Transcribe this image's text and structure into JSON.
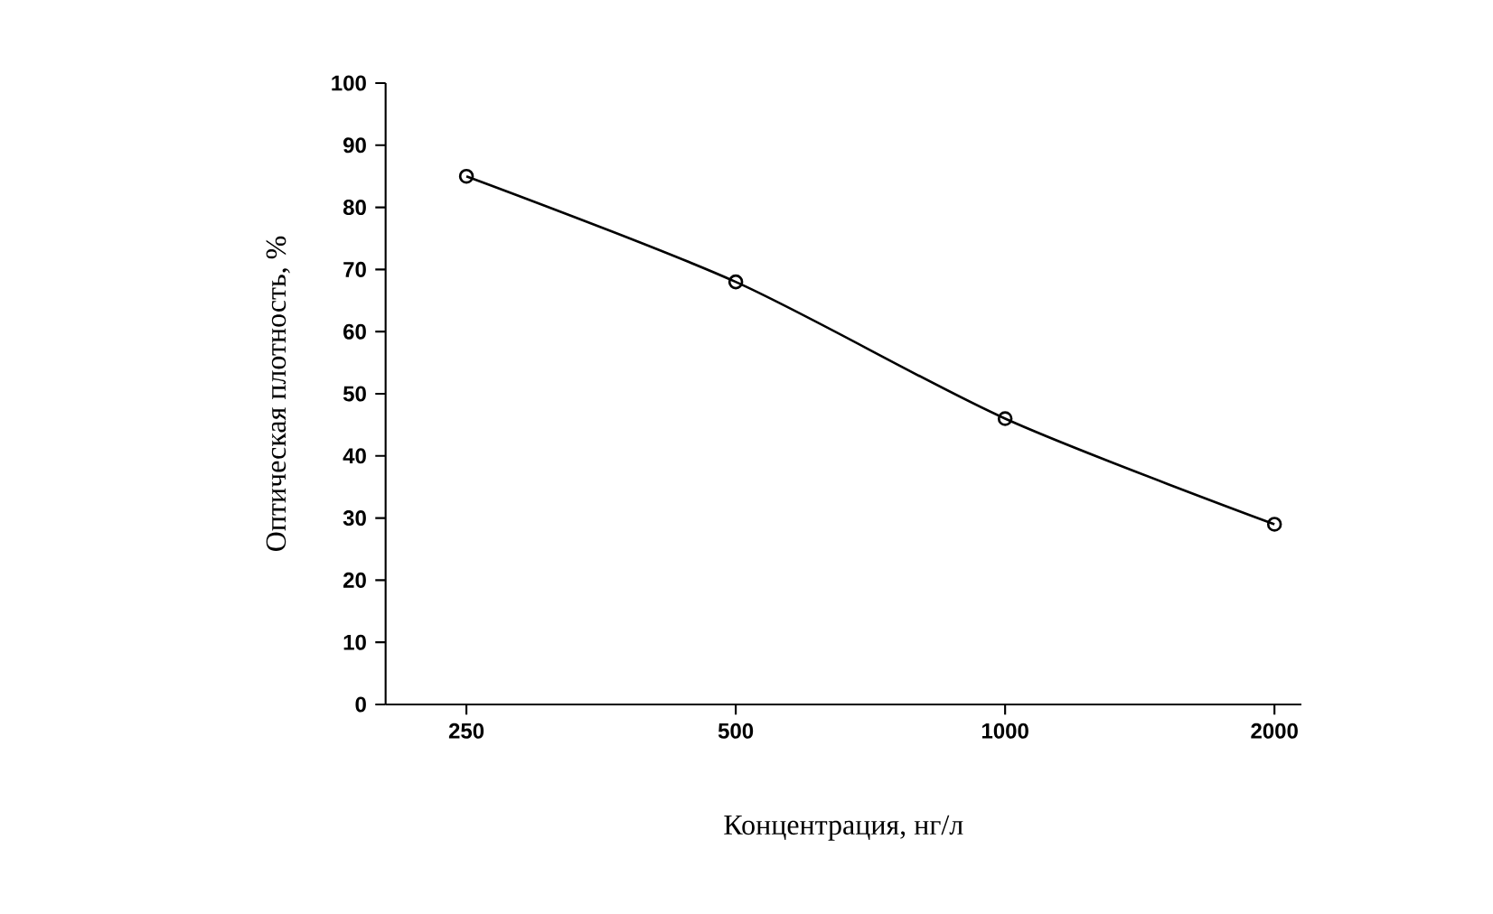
{
  "chart_data": {
    "type": "line",
    "xlabel": "Концентрация, нг/л",
    "ylabel": "Оптическая плотность, %",
    "categories": [
      "250",
      "500",
      "1000",
      "2000"
    ],
    "series": [
      {
        "color": "#000000",
        "values": [
          85,
          68,
          46,
          29
        ]
      }
    ],
    "ylim": [
      0,
      100
    ],
    "yticks": [
      0,
      10,
      20,
      30,
      40,
      50,
      60,
      70,
      80,
      90,
      100
    ],
    "marker": "circle",
    "line_style": "solid"
  }
}
